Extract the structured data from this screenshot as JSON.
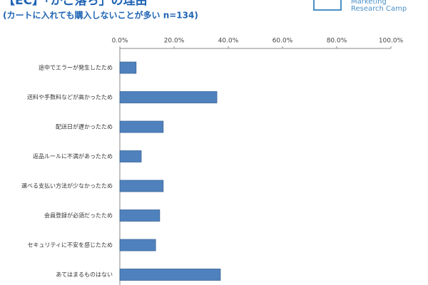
{
  "chart_data": {
    "type": "barh",
    "title": "【EC】「かご落ち」の理由",
    "subtitle": "(カートに入れても購入しないことが多い n=134)",
    "logo": [
      "Marketing",
      "Research Camp"
    ],
    "categories": [
      "途中でエラーが発生したため",
      "送料や手数料などが高かったため",
      "配送日が遅かったため",
      "返品ルールに不満があったため",
      "選べる支払い方法が少なかったため",
      "会員登録が必須だったため",
      "セキュリティに不安を感じたため",
      "あてはまるものはない"
    ],
    "values": [
      6.0,
      35.8,
      16.0,
      7.9,
      16.0,
      14.7,
      13.2,
      37.1
    ],
    "color": "#4f81bd",
    "xlim": [
      0,
      100
    ],
    "xticks": [
      {
        "value": 0,
        "label": "0.0%"
      },
      {
        "value": 20,
        "label": "20.0%"
      },
      {
        "value": 40,
        "label": "40.0%"
      },
      {
        "value": 60,
        "label": "60.0%"
      },
      {
        "value": 80,
        "label": "80.0%"
      },
      {
        "value": 100,
        "label": "100.0%"
      }
    ]
  }
}
